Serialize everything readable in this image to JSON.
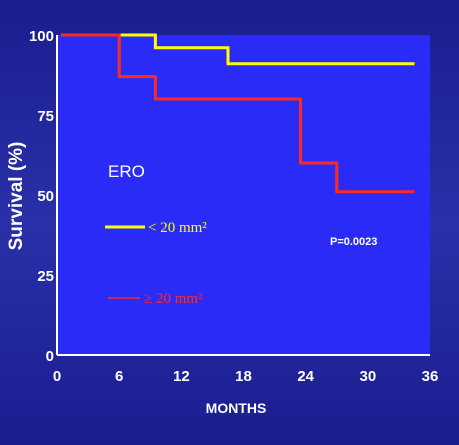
{
  "chart_data": {
    "type": "line",
    "title": "",
    "xlabel": "MONTHS",
    "ylabel": "Survival (%)",
    "xlim": [
      0,
      36
    ],
    "ylim": [
      0,
      100
    ],
    "x_ticks": [
      "0",
      "6",
      "12",
      "18",
      "24",
      "30",
      "36"
    ],
    "y_ticks": [
      "0",
      "25",
      "50",
      "75",
      "100"
    ],
    "annotations": {
      "group_label": "ERO",
      "p_value": "P=0.0023"
    },
    "series": [
      {
        "name": "< 20 mm²",
        "color": "#ffff00",
        "step": true,
        "points": [
          [
            0.4,
            100
          ],
          [
            9.5,
            100
          ],
          [
            9.5,
            96
          ],
          [
            16.5,
            96
          ],
          [
            16.5,
            91
          ],
          [
            34.5,
            91
          ]
        ]
      },
      {
        "name": "≥ 20 mm²",
        "color": "#ff2a1f",
        "step": true,
        "points": [
          [
            0.4,
            100
          ],
          [
            6,
            100
          ],
          [
            6,
            87
          ],
          [
            9.5,
            87
          ],
          [
            9.5,
            80
          ],
          [
            23.5,
            80
          ],
          [
            23.5,
            60
          ],
          [
            27,
            60
          ],
          [
            27,
            51
          ],
          [
            34.5,
            51
          ]
        ]
      }
    ],
    "plot_bg": "#2b2bf7",
    "grid": false
  }
}
